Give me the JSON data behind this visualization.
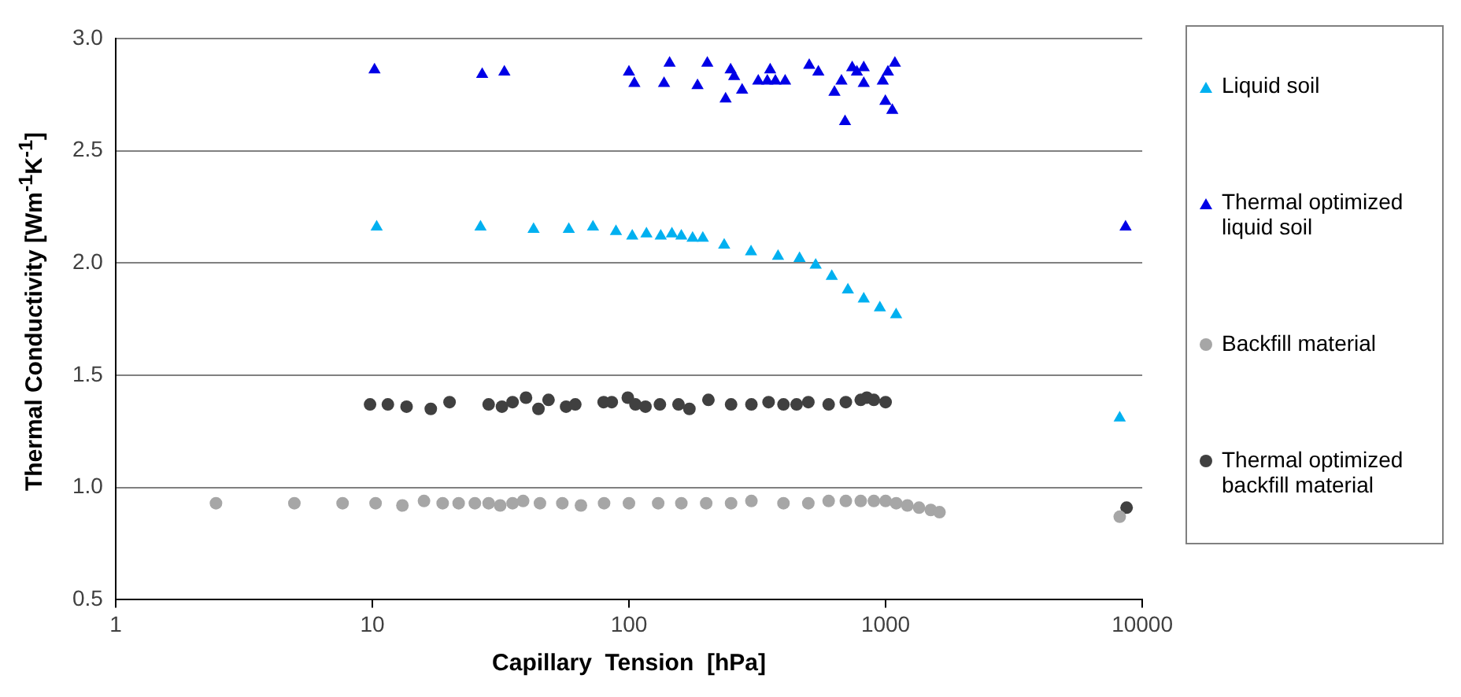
{
  "chart_data": {
    "type": "scatter",
    "xlabel": "Capillary  Tension  [hPa]",
    "ylabel": "Thermal Conductivity [Wm$^{-1}$K$^{-1}$]",
    "log": "x",
    "grid": "y",
    "legend": "right",
    "xlim": [
      1,
      10000
    ],
    "xticks": [
      1,
      10,
      100,
      1000,
      10000
    ],
    "ylim": [
      0.5,
      3.0
    ],
    "yticks": [
      0.5,
      {
        "value": 1,
        "label": "1.0"
      },
      1.5,
      {
        "value": 2,
        "label": "2.0"
      },
      2.5,
      {
        "value": 3,
        "label": "3.0"
      }
    ],
    "series": [
      {
        "name": "Liquid soil",
        "color": "#00b0f0",
        "marker": "triangle",
        "x": [
          10.4,
          26.4,
          42.5,
          58.3,
          72.4,
          89,
          103,
          117,
          133,
          147,
          160,
          177,
          194,
          235,
          299,
          381,
          462,
          534,
          617,
          713,
          822,
          950,
          1099,
          8170
        ],
        "values": [
          2.16,
          2.16,
          2.15,
          2.15,
          2.16,
          2.14,
          2.12,
          2.13,
          2.12,
          2.13,
          2.12,
          2.11,
          2.11,
          2.08,
          2.05,
          2.03,
          2.02,
          1.99,
          1.94,
          1.88,
          1.84,
          1.8,
          1.77,
          1.31
        ]
      },
      {
        "name": "Thermal optimized liquid soil",
        "color": "#0000e6",
        "marker": "triangle",
        "x": [
          10.2,
          26.8,
          32.7,
          100,
          105,
          137,
          144,
          185,
          202,
          238,
          249,
          257,
          276,
          319,
          346,
          355,
          372,
          406,
          504,
          547,
          632,
          673,
          695,
          741,
          773,
          822,
          822,
          975,
          998,
          1021,
          1062,
          1087,
          8610
        ],
        "values": [
          2.86,
          2.84,
          2.85,
          2.85,
          2.8,
          2.8,
          2.89,
          2.79,
          2.89,
          2.73,
          2.86,
          2.83,
          2.77,
          2.81,
          2.81,
          2.86,
          2.81,
          2.81,
          2.88,
          2.85,
          2.76,
          2.81,
          2.63,
          2.87,
          2.85,
          2.87,
          2.8,
          2.81,
          2.72,
          2.85,
          2.68,
          2.89,
          2.16
        ]
      },
      {
        "name": "Backfill material",
        "color": "#a6a6a6",
        "marker": "circle",
        "x": [
          2.46,
          4.97,
          7.66,
          10.3,
          13.1,
          15.9,
          18.8,
          21.7,
          25.1,
          28.4,
          31.5,
          35.2,
          38.7,
          45,
          55,
          65,
          80,
          100,
          130,
          160,
          200,
          250,
          300,
          400,
          500,
          600,
          700,
          800,
          900,
          1000,
          1100,
          1216,
          1350,
          1500,
          1622,
          8170
        ],
        "values": [
          0.93,
          0.93,
          0.93,
          0.93,
          0.92,
          0.94,
          0.93,
          0.93,
          0.93,
          0.93,
          0.92,
          0.93,
          0.94,
          0.93,
          0.93,
          0.92,
          0.93,
          0.93,
          0.93,
          0.93,
          0.93,
          0.93,
          0.94,
          0.93,
          0.93,
          0.94,
          0.94,
          0.94,
          0.94,
          0.94,
          0.93,
          0.92,
          0.91,
          0.9,
          0.89,
          0.87
        ]
      },
      {
        "name": "Thermal optimized backfill material",
        "color": "#404040",
        "marker": "circle",
        "x": [
          9.8,
          11.5,
          13.6,
          16.9,
          20.0,
          28.4,
          32,
          35.2,
          39.7,
          44.4,
          48.6,
          56.9,
          61.8,
          79.7,
          85.7,
          99,
          106,
          116,
          132,
          156,
          172,
          204,
          250,
          300,
          350,
          400,
          450,
          500,
          600,
          700,
          800,
          845,
          900,
          1000,
          8690
        ],
        "values": [
          1.37,
          1.37,
          1.36,
          1.35,
          1.38,
          1.37,
          1.36,
          1.38,
          1.4,
          1.35,
          1.39,
          1.36,
          1.37,
          1.38,
          1.38,
          1.4,
          1.37,
          1.36,
          1.37,
          1.37,
          1.35,
          1.39,
          1.37,
          1.37,
          1.38,
          1.37,
          1.37,
          1.38,
          1.37,
          1.38,
          1.39,
          1.4,
          1.39,
          1.38,
          0.91
        ]
      }
    ]
  }
}
